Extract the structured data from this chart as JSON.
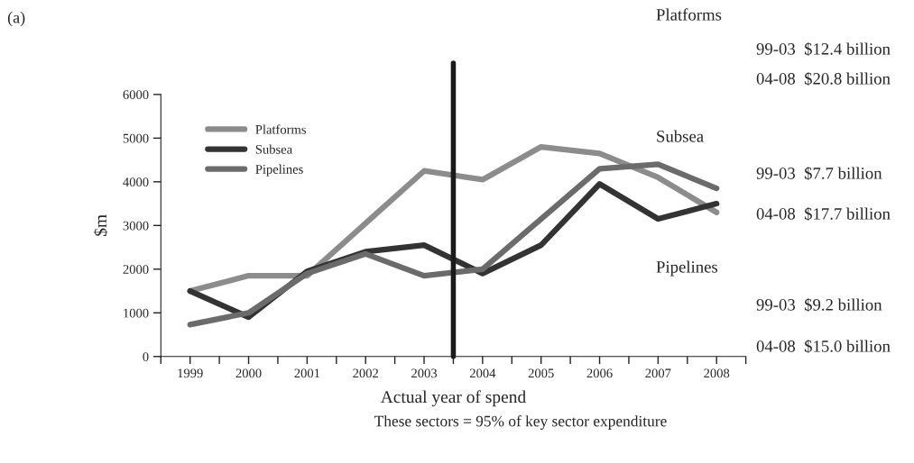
{
  "chart_data": {
    "type": "line",
    "title": "(a)",
    "xlabel": "Actual year of spend",
    "ylabel": "$m",
    "x": [
      1999,
      2000,
      2001,
      2002,
      2003,
      2004,
      2005,
      2006,
      2007,
      2008
    ],
    "series": [
      {
        "name": "Platforms",
        "color": "#8c8c8c",
        "values": [
          1500,
          1850,
          1850,
          3050,
          4250,
          4050,
          4800,
          4650,
          4100,
          3300
        ]
      },
      {
        "name": "Subsea",
        "color": "#333333",
        "values": [
          1500,
          900,
          1950,
          2400,
          2550,
          1900,
          2550,
          3950,
          3150,
          3500
        ]
      },
      {
        "name": "Pipelines",
        "color": "#6b6b6b",
        "values": [
          730,
          1000,
          1900,
          2350,
          1850,
          2000,
          3150,
          4300,
          4400,
          3850
        ]
      }
    ],
    "xlim": [
      1998.5,
      2008.5
    ],
    "xticks": [
      {
        "value": 1998.5,
        "label": null
      },
      {
        "value": 1999,
        "label": "1999"
      },
      {
        "value": 1999.5,
        "label": null
      },
      {
        "value": 2000,
        "label": "2000"
      },
      {
        "value": 2000.5,
        "label": null
      },
      {
        "value": 2001,
        "label": "2001"
      },
      {
        "value": 2001.5,
        "label": null
      },
      {
        "value": 2002,
        "label": "2002"
      },
      {
        "value": 2002.5,
        "label": null
      },
      {
        "value": 2003,
        "label": "2003"
      },
      {
        "value": 2003.5,
        "label": null
      },
      {
        "value": 2004,
        "label": "2004"
      },
      {
        "value": 2004.5,
        "label": null
      },
      {
        "value": 2005,
        "label": "2005"
      },
      {
        "value": 2005.5,
        "label": null
      },
      {
        "value": 2006,
        "label": "2006"
      },
      {
        "value": 2006.5,
        "label": null
      },
      {
        "value": 2007,
        "label": "2007"
      },
      {
        "value": 2007.5,
        "label": null
      },
      {
        "value": 2008,
        "label": "2008"
      },
      {
        "value": 2008.5,
        "label": null
      }
    ],
    "ylim": [
      0,
      6000
    ],
    "yticks": [
      0,
      1000,
      2000,
      3000,
      4000,
      5000,
      6000
    ],
    "ref_lines": [
      {
        "axis": "x",
        "value": 2003.5,
        "color": "#1a1a1a"
      }
    ],
    "grid": false,
    "legend": "top left",
    "marker": "none",
    "line_style": "solid",
    "annotations": [
      "Platforms",
      "99-03  $12.4 billion",
      "04-08  $20.8 billion",
      "Subsea",
      "99-03  $7.7 billion",
      "04-08  $17.7 billion",
      "Pipelines",
      "99-03  $9.2 billion",
      "04-08  $15.0 billion",
      "These sectors = 95% of key sector expenditure"
    ]
  }
}
